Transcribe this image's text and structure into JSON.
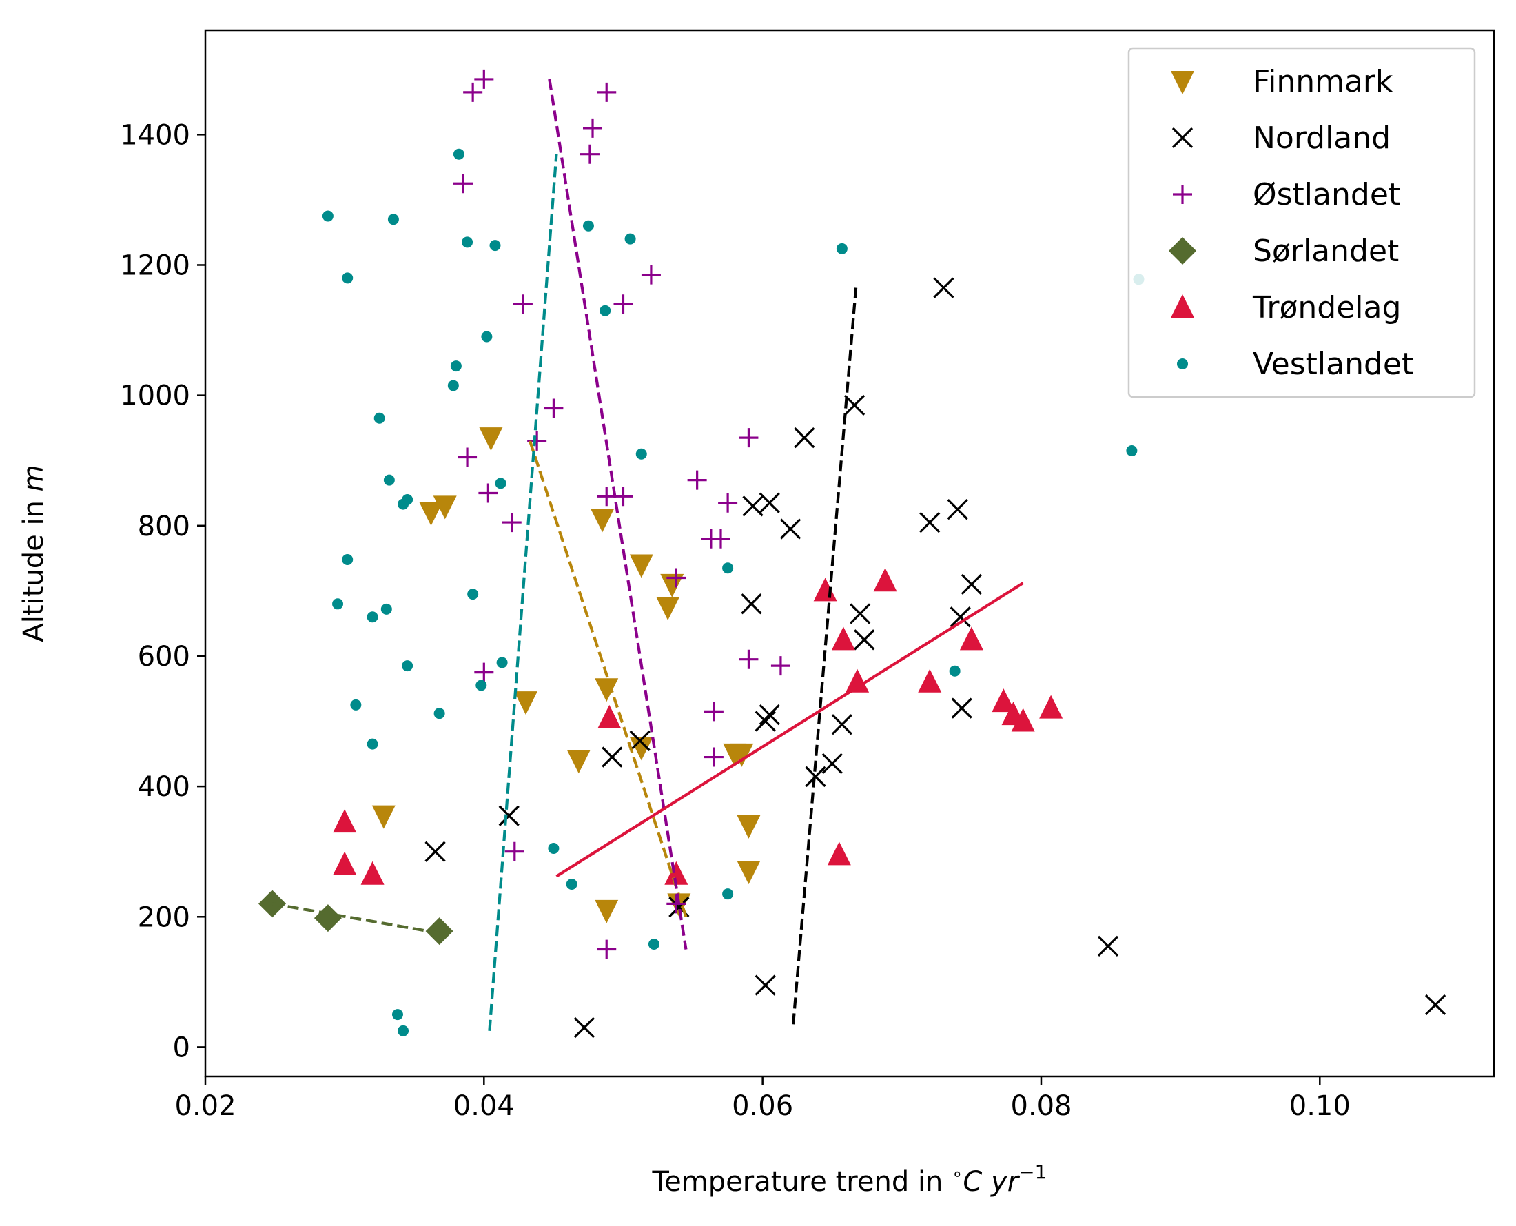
{
  "chart_data": {
    "type": "scatter",
    "title": "",
    "xlabel_main": "Temperature trend in ",
    "xlabel_unit_deg": "∘",
    "xlabel_unit_c": "C yr",
    "xlabel_unit_exp": "−1",
    "ylabel_main": "Altitude in ",
    "ylabel_unit": "m",
    "xlim": [
      0.02,
      0.1125
    ],
    "ylim": [
      -45,
      1560
    ],
    "xticks": [
      0.02,
      0.04,
      0.06,
      0.08,
      0.1
    ],
    "xtick_labels": [
      "0.02",
      "0.04",
      "0.06",
      "0.08",
      "0.10"
    ],
    "yticks": [
      0,
      200,
      400,
      600,
      800,
      1000,
      1200,
      1400
    ],
    "ytick_labels": [
      "0",
      "200",
      "400",
      "600",
      "800",
      "1000",
      "1200",
      "1400"
    ],
    "grid": false,
    "legend_position": "top-right",
    "series": [
      {
        "name": "Finnmark",
        "marker": "triangle-down",
        "color": "#b8860b",
        "points": [
          [
            0.0405,
            935
          ],
          [
            0.0362,
            820
          ],
          [
            0.0372,
            830
          ],
          [
            0.0485,
            810
          ],
          [
            0.0513,
            740
          ],
          [
            0.0535,
            710
          ],
          [
            0.0532,
            675
          ],
          [
            0.0488,
            550
          ],
          [
            0.043,
            530
          ],
          [
            0.0468,
            440
          ],
          [
            0.0513,
            460
          ],
          [
            0.058,
            450
          ],
          [
            0.059,
            340
          ],
          [
            0.059,
            270
          ],
          [
            0.0488,
            210
          ],
          [
            0.0328,
            355
          ],
          [
            0.054,
            220
          ],
          [
            0.0585,
            450
          ]
        ],
        "trend": {
          "style": "dashed",
          "x": [
            0.0433,
            0.0545
          ],
          "y": [
            930,
            200
          ]
        }
      },
      {
        "name": "Nordland",
        "marker": "x",
        "color": "#000000",
        "points": [
          [
            0.073,
            1165
          ],
          [
            0.0666,
            985
          ],
          [
            0.063,
            935
          ],
          [
            0.072,
            805
          ],
          [
            0.074,
            825
          ],
          [
            0.0593,
            830
          ],
          [
            0.0605,
            835
          ],
          [
            0.062,
            795
          ],
          [
            0.0592,
            680
          ],
          [
            0.075,
            710
          ],
          [
            0.0742,
            660
          ],
          [
            0.067,
            665
          ],
          [
            0.0673,
            625
          ],
          [
            0.0605,
            510
          ],
          [
            0.0602,
            500
          ],
          [
            0.0512,
            470
          ],
          [
            0.0492,
            445
          ],
          [
            0.0657,
            495
          ],
          [
            0.0638,
            415
          ],
          [
            0.065,
            435
          ],
          [
            0.0743,
            520
          ],
          [
            0.0418,
            355
          ],
          [
            0.0365,
            300
          ],
          [
            0.054,
            215
          ],
          [
            0.0472,
            30
          ],
          [
            0.0602,
            95
          ],
          [
            0.0848,
            155
          ],
          [
            0.1083,
            65
          ]
        ],
        "trend": {
          "style": "dashed",
          "x": [
            0.0622,
            0.0667
          ],
          "y": [
            35,
            1165
          ]
        }
      },
      {
        "name": "Østlandet",
        "marker": "plus",
        "color": "#8b008b",
        "points": [
          [
            0.04,
            1485
          ],
          [
            0.0392,
            1465
          ],
          [
            0.0488,
            1465
          ],
          [
            0.0478,
            1410
          ],
          [
            0.0476,
            1370
          ],
          [
            0.0385,
            1325
          ],
          [
            0.052,
            1185
          ],
          [
            0.0428,
            1140
          ],
          [
            0.05,
            1140
          ],
          [
            0.045,
            980
          ],
          [
            0.0438,
            930
          ],
          [
            0.059,
            935
          ],
          [
            0.0388,
            905
          ],
          [
            0.0403,
            850
          ],
          [
            0.0553,
            870
          ],
          [
            0.0488,
            845
          ],
          [
            0.05,
            845
          ],
          [
            0.0575,
            835
          ],
          [
            0.042,
            805
          ],
          [
            0.0563,
            780
          ],
          [
            0.057,
            780
          ],
          [
            0.059,
            595
          ],
          [
            0.0613,
            585
          ],
          [
            0.04,
            575
          ],
          [
            0.0538,
            720
          ],
          [
            0.0565,
            515
          ],
          [
            0.0565,
            445
          ],
          [
            0.0422,
            300
          ],
          [
            0.0488,
            150
          ],
          [
            0.0538,
            220
          ]
        ],
        "trend": {
          "style": "dashed",
          "x": [
            0.0447,
            0.0545
          ],
          "y": [
            1485,
            150
          ]
        }
      },
      {
        "name": "Sørlandet",
        "marker": "diamond",
        "color": "#556b2f",
        "points": [
          [
            0.0248,
            220
          ],
          [
            0.0288,
            198
          ],
          [
            0.0368,
            178
          ]
        ],
        "trend": {
          "style": "dashed",
          "x": [
            0.0248,
            0.0368
          ],
          "y": [
            220,
            175
          ]
        }
      },
      {
        "name": "Trøndelag",
        "marker": "triangle-up",
        "color": "#dc143c",
        "points": [
          [
            0.0645,
            700
          ],
          [
            0.0688,
            715
          ],
          [
            0.0658,
            625
          ],
          [
            0.075,
            625
          ],
          [
            0.0668,
            560
          ],
          [
            0.072,
            560
          ],
          [
            0.0773,
            530
          ],
          [
            0.078,
            510
          ],
          [
            0.0787,
            500
          ],
          [
            0.0807,
            520
          ],
          [
            0.049,
            505
          ],
          [
            0.03,
            345
          ],
          [
            0.03,
            280
          ],
          [
            0.032,
            265
          ],
          [
            0.0538,
            265
          ],
          [
            0.0655,
            295
          ]
        ],
        "trend": {
          "style": "solid",
          "x": [
            0.0452,
            0.0787
          ],
          "y": [
            262,
            712
          ]
        }
      },
      {
        "name": "Vestlandet",
        "marker": "dot",
        "color": "#008b8b",
        "points": [
          [
            0.0288,
            1275
          ],
          [
            0.0335,
            1270
          ],
          [
            0.0302,
            1180
          ],
          [
            0.0382,
            1370
          ],
          [
            0.0388,
            1235
          ],
          [
            0.0408,
            1230
          ],
          [
            0.0475,
            1260
          ],
          [
            0.0505,
            1240
          ],
          [
            0.0487,
            1130
          ],
          [
            0.0402,
            1090
          ],
          [
            0.038,
            1045
          ],
          [
            0.0378,
            1015
          ],
          [
            0.0325,
            965
          ],
          [
            0.0332,
            870
          ],
          [
            0.0345,
            840
          ],
          [
            0.0342,
            833
          ],
          [
            0.0412,
            865
          ],
          [
            0.0513,
            910
          ],
          [
            0.0302,
            748
          ],
          [
            0.0295,
            680
          ],
          [
            0.032,
            660
          ],
          [
            0.033,
            672
          ],
          [
            0.0392,
            695
          ],
          [
            0.0345,
            585
          ],
          [
            0.0413,
            590
          ],
          [
            0.0398,
            555
          ],
          [
            0.0308,
            525
          ],
          [
            0.0368,
            512
          ],
          [
            0.032,
            465
          ],
          [
            0.045,
            305
          ],
          [
            0.0463,
            250
          ],
          [
            0.0575,
            735
          ],
          [
            0.0738,
            577
          ],
          [
            0.0575,
            235
          ],
          [
            0.0522,
            158
          ],
          [
            0.0338,
            50
          ],
          [
            0.0342,
            25
          ],
          [
            0.0657,
            1225
          ],
          [
            0.0865,
            915
          ],
          [
            0.087,
            1178
          ]
        ],
        "trend": {
          "style": "dashed",
          "x": [
            0.0404,
            0.0452
          ],
          "y": [
            25,
            1370
          ]
        }
      }
    ]
  }
}
